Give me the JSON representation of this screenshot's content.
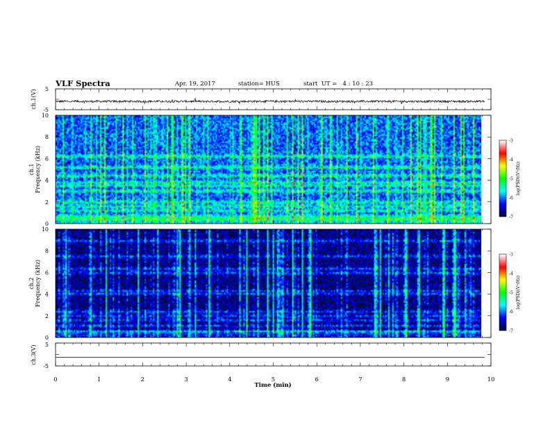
{
  "header": {
    "title": "VLF Spectra",
    "date": "Apr. 19, 2017",
    "station": "station= HUS",
    "start_ut": "start  UT =   4 : 10 : 23"
  },
  "colors": {
    "colormap": [
      "#000a40",
      "#0000ff",
      "#00ffff",
      "#00ff00",
      "#ffff00",
      "#ff0000",
      "#ffffff"
    ],
    "trace": "#000000"
  },
  "chart_data": [
    {
      "type": "line",
      "panel": "ch1-waveform",
      "ylabel": "ch.1(V)",
      "ylim": [
        -5,
        5
      ],
      "yticks": [
        "5",
        "-5"
      ],
      "x_range": [
        0,
        9.85
      ],
      "y_level": -1.0,
      "noise_amplitude": 0.5
    },
    {
      "type": "heatmap",
      "panel": "ch1-spectrogram",
      "ylabel_line1": "ch.1",
      "ylabel_line2": "Frequency (kHz)",
      "ylim": [
        0,
        10
      ],
      "yticks": [
        "0",
        "2",
        "4",
        "6",
        "8",
        "10"
      ],
      "x_range": [
        0,
        9.85
      ],
      "base_level": -6.1,
      "colorbar": {
        "label": "log(PSD)(V²/Hz)",
        "ticks": [
          "-3",
          "-4",
          "-5",
          "-6",
          "-7"
        ],
        "range": [
          -7,
          -3
        ]
      },
      "bands_khz": [
        0.4,
        0.7,
        1.2,
        1.6,
        2.0,
        3.0,
        3.5,
        3.8,
        4.4,
        5.2,
        6.2
      ]
    },
    {
      "type": "heatmap",
      "panel": "ch2-spectrogram",
      "ylabel_line1": "ch.2",
      "ylabel_line2": "Frequency (kHz)",
      "ylim": [
        0,
        10
      ],
      "yticks": [
        "0",
        "2",
        "4",
        "6",
        "8",
        "10"
      ],
      "x_range": [
        0,
        9.85
      ],
      "base_level": -6.8,
      "colorbar": {
        "label": "log(PSD)(V²/Hz)",
        "ticks": [
          "-3",
          "-4",
          "-5",
          "-6",
          "-7"
        ],
        "range": [
          -7,
          -3
        ]
      },
      "bands_khz": [
        0.5,
        1.1,
        1.5,
        2.0,
        2.4,
        4.0,
        4.3,
        6.0,
        6.4,
        7.5,
        9.0
      ]
    },
    {
      "type": "line",
      "panel": "ch3-waveform",
      "ylabel": "ch.3(V)",
      "ylim": [
        -5,
        5
      ],
      "yticks": [
        "5",
        "-5"
      ],
      "x_range": [
        0,
        9.85
      ],
      "y_level": -1.2,
      "noise_amplitude": 0
    }
  ],
  "xaxis": {
    "label": "Time (min)",
    "ticks": [
      "0",
      "1",
      "2",
      "3",
      "4",
      "5",
      "6",
      "7",
      "8",
      "9",
      "10"
    ],
    "range": [
      0,
      10
    ]
  }
}
